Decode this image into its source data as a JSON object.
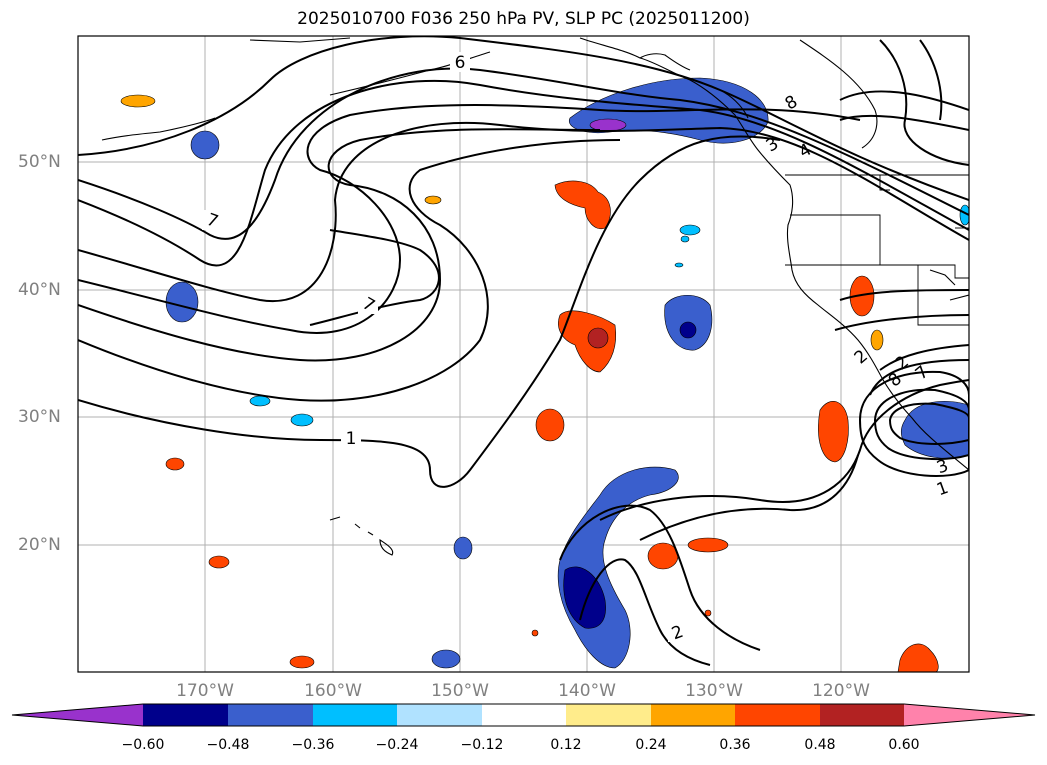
{
  "title": "2025010700 F036 250 hPa PV, SLP PC (2025011200)",
  "lat_labels": [
    "50°N",
    "40°N",
    "30°N",
    "20°N"
  ],
  "lon_labels": [
    "170°W",
    "160°W",
    "150°W",
    "140°W",
    "130°W",
    "120°W"
  ],
  "contour_labels": [
    "6",
    "7",
    "7",
    "1",
    "2",
    "8",
    "4",
    "3",
    "2",
    "2",
    "8",
    "7",
    "3",
    "1"
  ],
  "colorbar": {
    "ticks": [
      "−0.60",
      "−0.48",
      "−0.36",
      "−0.24",
      "−0.12",
      "0.12",
      "0.24",
      "0.36",
      "0.48",
      "0.60"
    ],
    "colors": [
      "#9932cc",
      "#00008b",
      "#3a5fcd",
      "#00bfff",
      "#b0e2ff",
      "#ffffff",
      "#ffec8b",
      "#ffa500",
      "#ff4500",
      "#b22222",
      "#ff82ab"
    ]
  }
}
